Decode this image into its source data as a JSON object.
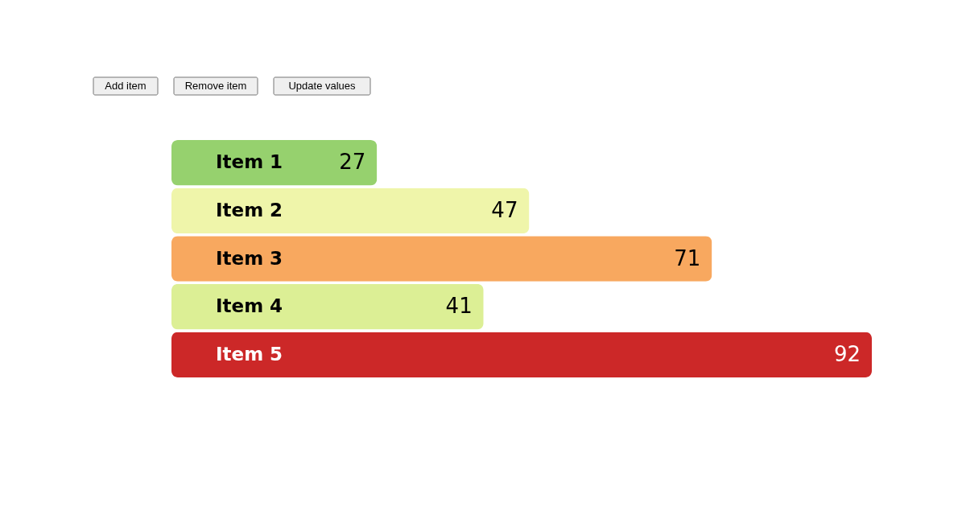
{
  "chart_data": {
    "type": "bar",
    "orientation": "horizontal",
    "categories": [
      "Item 1",
      "Item 2",
      "Item 3",
      "Item 4",
      "Item 5"
    ],
    "values": [
      27,
      47,
      71,
      41,
      92
    ],
    "colors": [
      "#96d16e",
      "#eff5aa",
      "#f8a85f",
      "#dcef95",
      "#cc2828"
    ],
    "data_labels": true,
    "annotations": [
      "Add item",
      "Remove item",
      "Update values"
    ]
  }
}
